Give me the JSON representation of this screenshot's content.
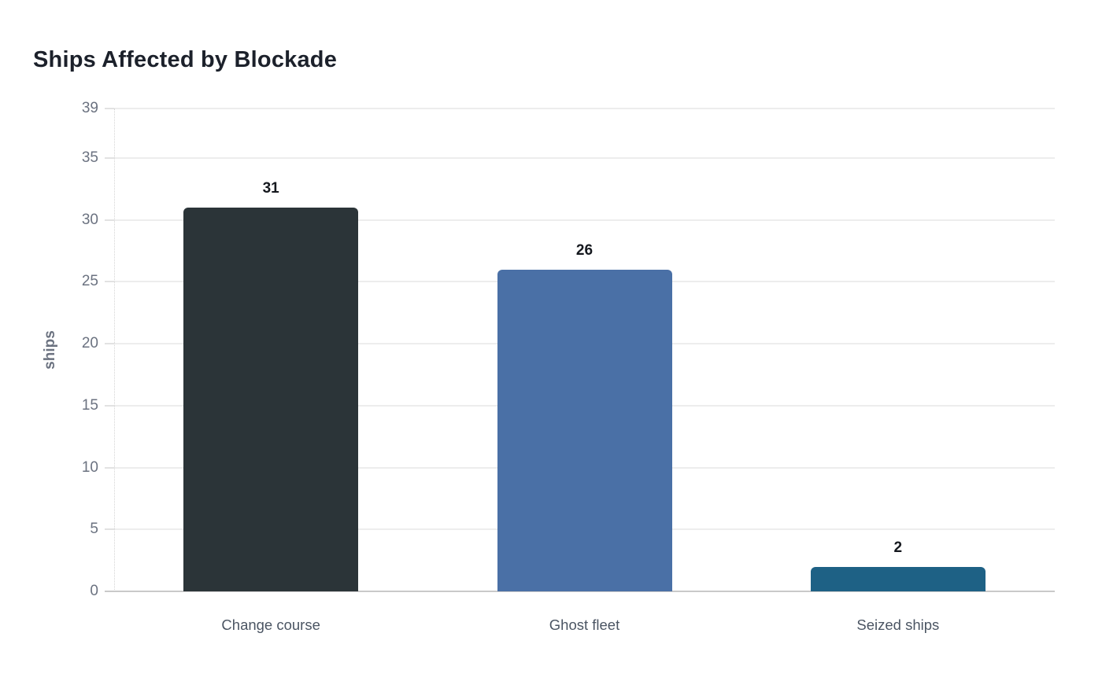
{
  "page": {
    "background": "#ffffff"
  },
  "chart_data": {
    "type": "bar",
    "title": "Ships Affected by Blockade",
    "xlabel": "",
    "ylabel": "ships",
    "categories": [
      "Change course",
      "Ghost fleet",
      "Seized ships"
    ],
    "values": [
      31,
      26,
      2
    ],
    "value_labels": [
      "31",
      "26",
      "2"
    ],
    "bar_colors": [
      "#2b3438",
      "#4a70a6",
      "#1e6185"
    ],
    "ylim": [
      0,
      39
    ],
    "yticks": [
      0,
      5,
      10,
      15,
      20,
      25,
      30,
      35,
      39
    ],
    "grid": true,
    "legend": "none"
  },
  "style": {
    "grid_color": "#ededed",
    "baseline_color": "#c9c9c9",
    "tick_label_color": "#6b7280",
    "category_label_color": "#4b5563",
    "value_label_color": "#15181e",
    "title_color": "#1c212b"
  }
}
